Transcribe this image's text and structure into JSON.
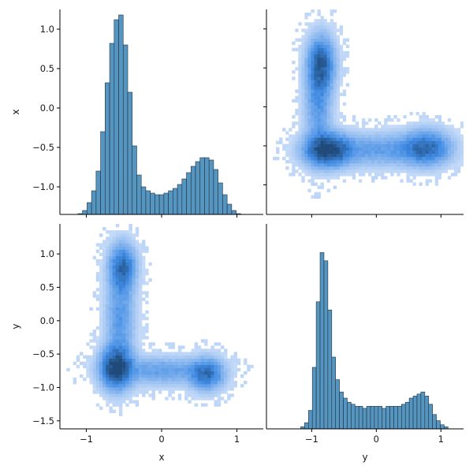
{
  "chart_data": {
    "type": "pairplot",
    "variables": [
      "x",
      "y"
    ],
    "colors": {
      "hist_fill": "#4c8fbd",
      "hist_edge": "#1f3344",
      "heat_low": "#dbe7fb",
      "heat_mid": "#3f8be4",
      "heat_high": "#1f4a7a"
    },
    "panels": [
      {
        "id": "hist-x",
        "type": "histogram",
        "variable": "x",
        "x_range": [
          -1.35,
          1.35
        ],
        "y_range": [
          -1.35,
          1.25
        ],
        "y_ticks": [
          1.0,
          0.5,
          0.0,
          -0.5,
          -1.0
        ],
        "y_tick_labels": [
          "1.0",
          "0.5",
          "0.0",
          "−0.5",
          "−1.0"
        ],
        "bin_width": 0.06,
        "bins": [
          {
            "x": -1.14,
            "top": -1.36
          },
          {
            "x": -1.08,
            "top": -1.34
          },
          {
            "x": -1.02,
            "top": -1.3
          },
          {
            "x": -0.96,
            "top": -1.2
          },
          {
            "x": -0.9,
            "top": -1.05
          },
          {
            "x": -0.84,
            "top": -0.8
          },
          {
            "x": -0.78,
            "top": -0.3
          },
          {
            "x": -0.72,
            "top": 0.32
          },
          {
            "x": -0.66,
            "top": 0.82
          },
          {
            "x": -0.6,
            "top": 1.12
          },
          {
            "x": -0.54,
            "top": 1.18
          },
          {
            "x": -0.48,
            "top": 0.8
          },
          {
            "x": -0.42,
            "top": 0.2
          },
          {
            "x": -0.36,
            "top": -0.48
          },
          {
            "x": -0.3,
            "top": -0.85
          },
          {
            "x": -0.24,
            "top": -1.0
          },
          {
            "x": -0.18,
            "top": -1.05
          },
          {
            "x": -0.12,
            "top": -1.08
          },
          {
            "x": -0.06,
            "top": -1.1
          },
          {
            "x": 0.0,
            "top": -1.1
          },
          {
            "x": 0.06,
            "top": -1.08
          },
          {
            "x": 0.12,
            "top": -1.05
          },
          {
            "x": 0.18,
            "top": -1.02
          },
          {
            "x": 0.24,
            "top": -0.97
          },
          {
            "x": 0.3,
            "top": -0.9
          },
          {
            "x": 0.36,
            "top": -0.82
          },
          {
            "x": 0.42,
            "top": -0.74
          },
          {
            "x": 0.48,
            "top": -0.68
          },
          {
            "x": 0.54,
            "top": -0.63
          },
          {
            "x": 0.6,
            "top": -0.63
          },
          {
            "x": 0.66,
            "top": -0.66
          },
          {
            "x": 0.72,
            "top": -0.78
          },
          {
            "x": 0.78,
            "top": -0.95
          },
          {
            "x": 0.84,
            "top": -1.1
          },
          {
            "x": 0.9,
            "top": -1.22
          },
          {
            "x": 0.96,
            "top": -1.3
          },
          {
            "x": 1.02,
            "top": -1.34
          },
          {
            "x": 1.08,
            "top": -1.36
          }
        ]
      },
      {
        "id": "heat-yx",
        "type": "hist2d",
        "x_variable": "y",
        "y_variable": "x",
        "x_range": [
          -1.7,
          1.35
        ],
        "y_range": [
          -1.38,
          1.25
        ],
        "blobs": [
          {
            "x": -0.75,
            "y": -0.55,
            "sx": 0.22,
            "sy": 0.13,
            "w": 1.0
          },
          {
            "x": -0.85,
            "y": 0.55,
            "sx": 0.13,
            "sy": 0.22,
            "w": 0.72
          },
          {
            "x": -0.9,
            "y": 0.05,
            "sx": 0.13,
            "sy": 0.38,
            "w": 0.38
          },
          {
            "x": 0.78,
            "y": -0.52,
            "sx": 0.22,
            "sy": 0.14,
            "w": 0.62
          },
          {
            "x": 0.1,
            "y": -0.55,
            "sx": 0.55,
            "sy": 0.13,
            "w": 0.34
          }
        ]
      },
      {
        "id": "heat-xy",
        "type": "hist2d",
        "x_variable": "x",
        "y_variable": "y",
        "x_range": [
          -1.35,
          1.35
        ],
        "y_range": [
          -1.62,
          1.45
        ],
        "y_ticks": [
          1.0,
          0.5,
          0.0,
          -0.5,
          -1.0,
          -1.5
        ],
        "y_tick_labels": [
          "1.0",
          "0.5",
          "0.0",
          "−0.5",
          "−1.0",
          "−1.5"
        ],
        "x_ticks": [
          -1,
          0,
          1
        ],
        "x_tick_labels": [
          "−1",
          "0",
          "1"
        ],
        "blobs": [
          {
            "x": -0.6,
            "y": -0.7,
            "sx": 0.13,
            "sy": 0.2,
            "w": 1.0
          },
          {
            "x": -0.52,
            "y": 0.8,
            "sx": 0.11,
            "sy": 0.22,
            "w": 0.72
          },
          {
            "x": -0.55,
            "y": 0.05,
            "sx": 0.12,
            "sy": 0.4,
            "w": 0.38
          },
          {
            "x": 0.6,
            "y": -0.8,
            "sx": 0.14,
            "sy": 0.15,
            "w": 0.62
          },
          {
            "x": 0.0,
            "y": -0.75,
            "sx": 0.4,
            "sy": 0.13,
            "w": 0.34
          }
        ]
      },
      {
        "id": "hist-y",
        "type": "histogram",
        "variable": "y",
        "x_range": [
          -1.7,
          1.35
        ],
        "y_range": [
          0,
          1.0
        ],
        "x_ticks": [
          -1,
          0,
          1
        ],
        "x_tick_labels": [
          "−1",
          "0",
          "1"
        ],
        "bin_width": 0.06,
        "bins": [
          {
            "x": -1.14,
            "top": 0.01
          },
          {
            "x": -1.08,
            "top": 0.03
          },
          {
            "x": -1.02,
            "top": 0.09
          },
          {
            "x": -0.96,
            "top": 0.3
          },
          {
            "x": -0.9,
            "top": 0.62
          },
          {
            "x": -0.84,
            "top": 0.86
          },
          {
            "x": -0.78,
            "top": 0.82
          },
          {
            "x": -0.72,
            "top": 0.58
          },
          {
            "x": -0.66,
            "top": 0.35
          },
          {
            "x": -0.6,
            "top": 0.24
          },
          {
            "x": -0.54,
            "top": 0.18
          },
          {
            "x": -0.48,
            "top": 0.15
          },
          {
            "x": -0.42,
            "top": 0.13
          },
          {
            "x": -0.36,
            "top": 0.12
          },
          {
            "x": -0.3,
            "top": 0.11
          },
          {
            "x": -0.24,
            "top": 0.11
          },
          {
            "x": -0.18,
            "top": 0.1
          },
          {
            "x": -0.12,
            "top": 0.11
          },
          {
            "x": -0.06,
            "top": 0.11
          },
          {
            "x": 0.0,
            "top": 0.11
          },
          {
            "x": 0.06,
            "top": 0.11
          },
          {
            "x": 0.12,
            "top": 0.1
          },
          {
            "x": 0.18,
            "top": 0.11
          },
          {
            "x": 0.24,
            "top": 0.11
          },
          {
            "x": 0.3,
            "top": 0.11
          },
          {
            "x": 0.36,
            "top": 0.11
          },
          {
            "x": 0.42,
            "top": 0.12
          },
          {
            "x": 0.48,
            "top": 0.13
          },
          {
            "x": 0.54,
            "top": 0.15
          },
          {
            "x": 0.6,
            "top": 0.16
          },
          {
            "x": 0.66,
            "top": 0.17
          },
          {
            "x": 0.72,
            "top": 0.18
          },
          {
            "x": 0.78,
            "top": 0.16
          },
          {
            "x": 0.84,
            "top": 0.12
          },
          {
            "x": 0.9,
            "top": 0.07
          },
          {
            "x": 0.96,
            "top": 0.04
          },
          {
            "x": 1.02,
            "top": 0.02
          },
          {
            "x": 1.08,
            "top": 0.01
          }
        ]
      }
    ],
    "xlabels": [
      "x",
      "y"
    ],
    "ylabels": [
      "x",
      "y"
    ]
  }
}
